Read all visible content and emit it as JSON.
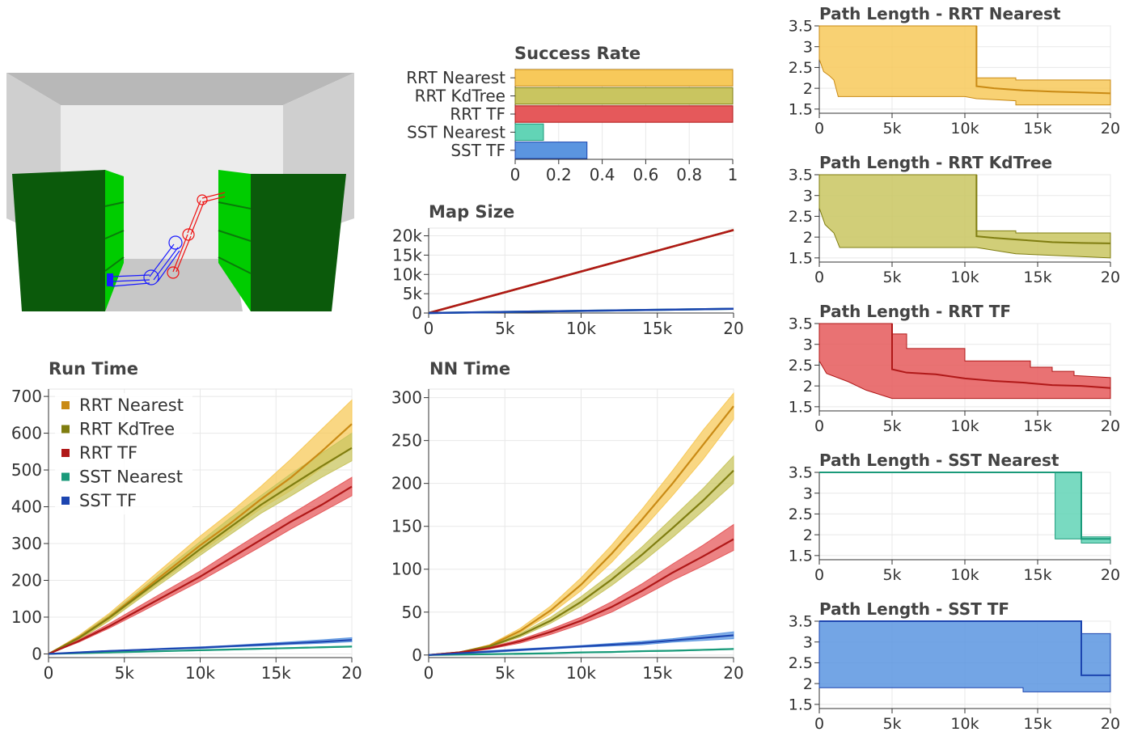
{
  "colors": {
    "rrt_nearest": "#c98a14",
    "rrt_kdtree": "#7f7d10",
    "rrt_tf": "#b01818",
    "sst_nearest": "#1a9a7a",
    "sst_tf": "#1c45b0",
    "fill_rrt_nearest": "#f7c95a",
    "fill_rrt_kdtree": "#c9c560",
    "fill_rrt_tf": "#e5595b",
    "fill_sst_nearest": "#62d4b6",
    "fill_sst_tf": "#5b95e0"
  },
  "scene": {
    "icon": "robot-arm-scene"
  },
  "chart_data": [
    {
      "id": "success_rate",
      "type": "bar",
      "orientation": "horizontal",
      "title": "Success Rate",
      "categories": [
        "RRT Nearest",
        "RRT KdTree",
        "RRT TF",
        "SST Nearest",
        "SST TF"
      ],
      "values": [
        1.0,
        1.0,
        1.0,
        0.13,
        0.33
      ],
      "xlim": [
        0,
        1
      ],
      "xticks": [
        "0",
        "0.2",
        "0.4",
        "0.6",
        "0.8",
        "1"
      ]
    },
    {
      "id": "map_size",
      "type": "line",
      "title": "Map Size",
      "xlim": [
        0,
        20000
      ],
      "ylim": [
        0,
        22000
      ],
      "xticks": [
        "0",
        "5k",
        "10k",
        "15k",
        "20"
      ],
      "yticks": [
        "0",
        "5k",
        "10k",
        "15k",
        "20k"
      ],
      "x": [
        0,
        20000
      ],
      "series": [
        {
          "key": "rrt_nearest",
          "values": [
            0,
            21500
          ]
        },
        {
          "key": "rrt_kdtree",
          "values": [
            0,
            21500
          ]
        },
        {
          "key": "rrt_tf",
          "values": [
            0,
            21500
          ]
        },
        {
          "key": "sst_nearest",
          "values": [
            0,
            1100
          ]
        },
        {
          "key": "sst_tf",
          "values": [
            0,
            1100
          ]
        }
      ]
    },
    {
      "id": "run_time",
      "type": "area",
      "title": "Run Time",
      "xlim": [
        0,
        20000
      ],
      "ylim": [
        -10,
        720
      ],
      "xticks": [
        "0",
        "5k",
        "10k",
        "15k",
        "20"
      ],
      "yticks": [
        "0",
        "100",
        "200",
        "300",
        "400",
        "500",
        "600",
        "700"
      ],
      "legend_position": "top-left",
      "legend": [
        "RRT Nearest",
        "RRT KdTree",
        "RRT TF",
        "SST Nearest",
        "SST TF"
      ],
      "x": [
        0,
        2000,
        4000,
        6000,
        8000,
        10000,
        12000,
        14000,
        16000,
        18000,
        20000
      ],
      "series": [
        {
          "name": "RRT Nearest",
          "key": "rrt_nearest",
          "values": [
            0,
            45,
            100,
            165,
            230,
            295,
            355,
            420,
            480,
            550,
            625
          ],
          "upper": [
            0,
            50,
            110,
            180,
            250,
            320,
            385,
            455,
            530,
            610,
            690
          ],
          "lower": [
            0,
            40,
            92,
            155,
            215,
            275,
            335,
            395,
            445,
            505,
            560
          ]
        },
        {
          "name": "RRT KdTree",
          "key": "rrt_kdtree",
          "values": [
            0,
            43,
            98,
            160,
            222,
            285,
            345,
            405,
            458,
            510,
            560
          ],
          "upper": [
            0,
            48,
            106,
            172,
            240,
            305,
            370,
            430,
            490,
            545,
            600
          ],
          "lower": [
            0,
            38,
            90,
            150,
            208,
            268,
            325,
            382,
            430,
            480,
            525
          ]
        },
        {
          "name": "RRT TF",
          "key": "rrt_tf",
          "values": [
            0,
            35,
            75,
            120,
            165,
            210,
            260,
            310,
            360,
            405,
            455
          ],
          "upper": [
            0,
            38,
            82,
            130,
            178,
            225,
            278,
            330,
            380,
            430,
            480
          ],
          "lower": [
            0,
            32,
            70,
            112,
            155,
            198,
            245,
            292,
            340,
            385,
            430
          ]
        },
        {
          "name": "SST Nearest",
          "key": "sst_nearest",
          "values": [
            0,
            2,
            4,
            6,
            8,
            10,
            12,
            14,
            16,
            18,
            20
          ],
          "upper": [
            0,
            3,
            5,
            7,
            9,
            11,
            13,
            15,
            17,
            19,
            21
          ],
          "lower": [
            0,
            1,
            3,
            5,
            7,
            9,
            11,
            13,
            15,
            17,
            19
          ]
        },
        {
          "name": "SST TF",
          "key": "sst_tf",
          "values": [
            0,
            4,
            8,
            11,
            14,
            17,
            21,
            25,
            29,
            33,
            38
          ],
          "upper": [
            0,
            5,
            9,
            12,
            16,
            19,
            23,
            28,
            33,
            38,
            44
          ],
          "lower": [
            0,
            3,
            7,
            10,
            13,
            15,
            19,
            22,
            26,
            29,
            33
          ]
        }
      ]
    },
    {
      "id": "nn_time",
      "type": "area",
      "title": "NN Time",
      "xlim": [
        0,
        20000
      ],
      "ylim": [
        -3,
        310
      ],
      "xticks": [
        "0",
        "5k",
        "10k",
        "15k",
        "20"
      ],
      "yticks": [
        "0",
        "50",
        "100",
        "150",
        "200",
        "250",
        "300"
      ],
      "x": [
        0,
        2000,
        4000,
        6000,
        8000,
        10000,
        12000,
        14000,
        16000,
        18000,
        20000
      ],
      "series": [
        {
          "key": "rrt_nearest",
          "values": [
            0,
            3,
            11,
            28,
            52,
            82,
            118,
            158,
            200,
            245,
            290
          ],
          "upper": [
            0,
            3,
            12,
            31,
            57,
            90,
            128,
            170,
            215,
            262,
            305
          ],
          "lower": [
            0,
            2,
            10,
            26,
            48,
            75,
            108,
            146,
            186,
            228,
            275
          ]
        },
        {
          "key": "rrt_kdtree",
          "values": [
            0,
            3,
            10,
            23,
            40,
            62,
            88,
            117,
            148,
            180,
            215
          ],
          "upper": [
            0,
            3,
            11,
            25,
            44,
            68,
            95,
            126,
            160,
            194,
            232
          ],
          "lower": [
            0,
            2,
            9,
            21,
            37,
            57,
            81,
            108,
            137,
            168,
            200
          ]
        },
        {
          "key": "rrt_tf",
          "values": [
            0,
            3,
            8,
            16,
            27,
            40,
            56,
            75,
            96,
            115,
            135
          ],
          "upper": [
            0,
            3,
            9,
            18,
            30,
            44,
            62,
            83,
            106,
            128,
            152
          ],
          "lower": [
            0,
            2,
            7,
            14,
            24,
            36,
            50,
            68,
            87,
            104,
            122
          ]
        },
        {
          "key": "sst_nearest",
          "values": [
            0,
            0.5,
            1,
            1.5,
            2,
            3,
            3.5,
            4.5,
            5,
            6,
            7
          ],
          "upper": [
            0,
            0.8,
            1.3,
            2,
            2.5,
            3.5,
            4,
            5,
            5.5,
            6.5,
            7.5
          ],
          "lower": [
            0,
            0.3,
            0.8,
            1.2,
            1.6,
            2.5,
            3,
            4,
            4.5,
            5.5,
            6.5
          ]
        },
        {
          "key": "sst_tf",
          "values": [
            0,
            2,
            4,
            6,
            8,
            10,
            12,
            14,
            17,
            20,
            23
          ],
          "upper": [
            0,
            2.5,
            5,
            7,
            9,
            11,
            13.5,
            16,
            19,
            23,
            27
          ],
          "lower": [
            0,
            1.5,
            3,
            5,
            7,
            9,
            10.5,
            12,
            15,
            17,
            19
          ]
        }
      ]
    },
    {
      "id": "pl_rrt_nearest",
      "type": "area",
      "title": "Path Length - RRT Nearest",
      "key": "rrt_nearest",
      "xlim": [
        0,
        20000
      ],
      "ylim": [
        1.4,
        3.5
      ],
      "xticks": [
        "0",
        "5k",
        "10k",
        "15k",
        "20"
      ],
      "yticks": [
        "1.5",
        "2",
        "2.5",
        "3",
        "3.5"
      ],
      "upper": [
        [
          0,
          3.5
        ],
        [
          10800,
          3.5
        ],
        [
          10800,
          2.25
        ],
        [
          13500,
          2.25
        ],
        [
          13500,
          2.2
        ],
        [
          20000,
          2.2
        ]
      ],
      "lower": [
        [
          0,
          2.7
        ],
        [
          300,
          2.4
        ],
        [
          500,
          2.35
        ],
        [
          700,
          2.3
        ],
        [
          1000,
          2.2
        ],
        [
          1300,
          1.8
        ],
        [
          10000,
          1.8
        ],
        [
          10800,
          1.75
        ],
        [
          13500,
          1.7
        ],
        [
          13500,
          1.6
        ],
        [
          20000,
          1.6
        ]
      ],
      "mean": [
        [
          10800,
          3.5
        ],
        [
          10800,
          2.05
        ],
        [
          12000,
          2.0
        ],
        [
          14000,
          1.95
        ],
        [
          16000,
          1.92
        ],
        [
          18000,
          1.9
        ],
        [
          20000,
          1.88
        ]
      ]
    },
    {
      "id": "pl_rrt_kdtree",
      "type": "area",
      "title": "Path Length - RRT KdTree",
      "key": "rrt_kdtree",
      "xlim": [
        0,
        20000
      ],
      "ylim": [
        1.4,
        3.5
      ],
      "xticks": [
        "0",
        "5k",
        "10k",
        "15k",
        "20"
      ],
      "yticks": [
        "1.5",
        "2",
        "2.5",
        "3",
        "3.5"
      ],
      "upper": [
        [
          0,
          3.5
        ],
        [
          10800,
          3.5
        ],
        [
          10800,
          2.15
        ],
        [
          13500,
          2.15
        ],
        [
          13500,
          2.1
        ],
        [
          20000,
          2.1
        ]
      ],
      "lower": [
        [
          0,
          2.7
        ],
        [
          400,
          2.3
        ],
        [
          700,
          2.2
        ],
        [
          1000,
          2.1
        ],
        [
          1400,
          1.75
        ],
        [
          10800,
          1.75
        ],
        [
          13500,
          1.6
        ],
        [
          20000,
          1.5
        ]
      ],
      "mean": [
        [
          10800,
          3.5
        ],
        [
          10800,
          2.02
        ],
        [
          12000,
          1.98
        ],
        [
          14000,
          1.93
        ],
        [
          16000,
          1.88
        ],
        [
          18000,
          1.86
        ],
        [
          20000,
          1.85
        ]
      ]
    },
    {
      "id": "pl_rrt_tf",
      "type": "area",
      "title": "Path Length - RRT TF",
      "key": "rrt_tf",
      "xlim": [
        0,
        20000
      ],
      "ylim": [
        1.4,
        3.5
      ],
      "xticks": [
        "0",
        "5k",
        "10k",
        "15k",
        "20"
      ],
      "yticks": [
        "1.5",
        "2",
        "2.5",
        "3",
        "3.5"
      ],
      "upper": [
        [
          0,
          3.5
        ],
        [
          5000,
          3.5
        ],
        [
          5000,
          3.25
        ],
        [
          6000,
          3.25
        ],
        [
          6000,
          2.9
        ],
        [
          10000,
          2.9
        ],
        [
          10000,
          2.6
        ],
        [
          14500,
          2.6
        ],
        [
          14500,
          2.45
        ],
        [
          16000,
          2.45
        ],
        [
          16000,
          2.35
        ],
        [
          17500,
          2.35
        ],
        [
          17500,
          2.25
        ],
        [
          20000,
          2.2
        ]
      ],
      "lower": [
        [
          0,
          2.6
        ],
        [
          500,
          2.3
        ],
        [
          2000,
          2.1
        ],
        [
          3200,
          1.9
        ],
        [
          5000,
          1.7
        ],
        [
          20000,
          1.7
        ]
      ],
      "mean": [
        [
          5000,
          3.5
        ],
        [
          5000,
          2.4
        ],
        [
          6000,
          2.32
        ],
        [
          8000,
          2.28
        ],
        [
          10000,
          2.18
        ],
        [
          12000,
          2.12
        ],
        [
          14000,
          2.08
        ],
        [
          16000,
          2.02
        ],
        [
          18000,
          2.0
        ],
        [
          20000,
          1.95
        ]
      ]
    },
    {
      "id": "pl_sst_nearest",
      "type": "area",
      "title": "Path Length - SST Nearest",
      "key": "sst_nearest",
      "xlim": [
        0,
        20000
      ],
      "ylim": [
        1.4,
        3.5
      ],
      "xticks": [
        "0",
        "5k",
        "10k",
        "15k",
        "20"
      ],
      "yticks": [
        "1.5",
        "2",
        "2.5",
        "3",
        "3.5"
      ],
      "upper": [
        [
          0,
          3.5
        ],
        [
          18000,
          3.5
        ],
        [
          18000,
          1.95
        ],
        [
          20000,
          1.95
        ]
      ],
      "lower": [
        [
          0,
          3.5
        ],
        [
          16200,
          3.5
        ],
        [
          16200,
          1.9
        ],
        [
          18000,
          1.9
        ],
        [
          18000,
          1.8
        ],
        [
          20000,
          1.8
        ]
      ],
      "mean": [
        [
          0,
          3.5
        ],
        [
          18000,
          3.5
        ],
        [
          18000,
          1.9
        ],
        [
          20000,
          1.9
        ]
      ]
    },
    {
      "id": "pl_sst_tf",
      "type": "area",
      "title": "Path Length - SST TF",
      "key": "sst_tf",
      "xlim": [
        0,
        20000
      ],
      "ylim": [
        1.4,
        3.5
      ],
      "xticks": [
        "0",
        "5k",
        "10k",
        "15k",
        "20"
      ],
      "yticks": [
        "1.5",
        "2",
        "2.5",
        "3",
        "3.5"
      ],
      "upper": [
        [
          0,
          3.5
        ],
        [
          18000,
          3.5
        ],
        [
          18000,
          3.2
        ],
        [
          20000,
          3.2
        ]
      ],
      "lower": [
        [
          0,
          1.9
        ],
        [
          14000,
          1.9
        ],
        [
          14000,
          1.8
        ],
        [
          20000,
          1.8
        ]
      ],
      "mean": [
        [
          0,
          3.5
        ],
        [
          18000,
          3.5
        ],
        [
          18000,
          2.2
        ],
        [
          20000,
          2.2
        ]
      ]
    }
  ]
}
